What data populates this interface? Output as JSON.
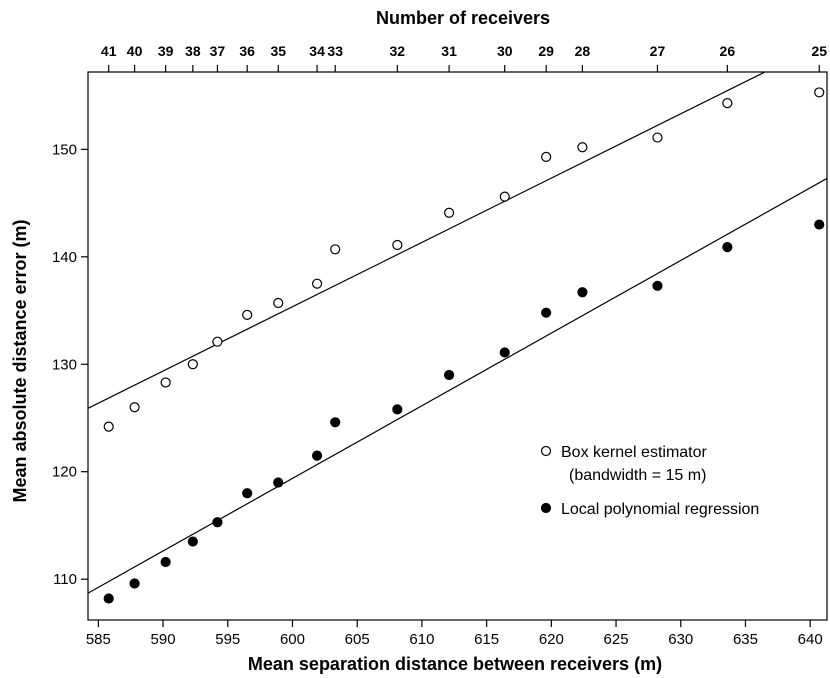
{
  "chart_data": {
    "type": "scatter",
    "x_label": "Mean separation distance between receivers (m)",
    "y_label": "Mean absolute distance error (m)",
    "top_axis_label": "Number of receivers",
    "xlim": [
      584.2,
      641.3
    ],
    "ylim": [
      106.2,
      157.2
    ],
    "x_ticks": [
      585,
      590,
      595,
      600,
      605,
      610,
      615,
      620,
      625,
      630,
      635,
      640
    ],
    "y_ticks": [
      110,
      120,
      130,
      140,
      150
    ],
    "top_ticks": [
      {
        "x": 585.8,
        "label": "41"
      },
      {
        "x": 587.8,
        "label": "40"
      },
      {
        "x": 590.2,
        "label": "39"
      },
      {
        "x": 592.3,
        "label": "38"
      },
      {
        "x": 594.2,
        "label": "37"
      },
      {
        "x": 596.5,
        "label": "36"
      },
      {
        "x": 598.9,
        "label": "35"
      },
      {
        "x": 601.9,
        "label": "34"
      },
      {
        "x": 603.3,
        "label": "33"
      },
      {
        "x": 608.1,
        "label": "32"
      },
      {
        "x": 612.1,
        "label": "31"
      },
      {
        "x": 616.4,
        "label": "30"
      },
      {
        "x": 619.6,
        "label": "29"
      },
      {
        "x": 622.4,
        "label": "28"
      },
      {
        "x": 628.2,
        "label": "27"
      },
      {
        "x": 633.6,
        "label": "26"
      },
      {
        "x": 640.7,
        "label": "25"
      }
    ],
    "series": [
      {
        "name": "Box kernel estimator",
        "name_line2": "(bandwidth = 15 m)",
        "marker": "open-circle",
        "x": [
          585.8,
          587.8,
          590.2,
          592.3,
          594.2,
          596.5,
          598.9,
          601.9,
          603.3,
          608.1,
          612.1,
          616.4,
          619.6,
          622.4,
          628.2,
          633.6,
          640.7
        ],
        "y": [
          124.2,
          126.0,
          128.3,
          130.0,
          132.1,
          134.6,
          135.7,
          137.5,
          140.7,
          141.1,
          144.1,
          145.6,
          149.3,
          150.2,
          151.1,
          154.3,
          155.3
        ],
        "fit_line": {
          "x1": 584.2,
          "y1": 125.9,
          "x2": 636.5,
          "y2": 157.2
        }
      },
      {
        "name": "Local polynomial regression",
        "marker": "filled-circle",
        "x": [
          585.8,
          587.8,
          590.2,
          592.3,
          594.2,
          596.5,
          598.9,
          601.9,
          603.3,
          608.1,
          612.1,
          616.4,
          619.6,
          622.4,
          628.2,
          633.6,
          640.7
        ],
        "y": [
          108.2,
          109.6,
          111.6,
          113.5,
          115.3,
          118.0,
          119.0,
          121.5,
          124.6,
          125.8,
          129.0,
          131.1,
          134.8,
          136.7,
          137.3,
          140.9,
          143.0
        ],
        "fit_line": {
          "x1": 584.2,
          "y1": 108.7,
          "x2": 641.3,
          "y2": 147.3
        }
      }
    ],
    "legend_position": "right"
  }
}
